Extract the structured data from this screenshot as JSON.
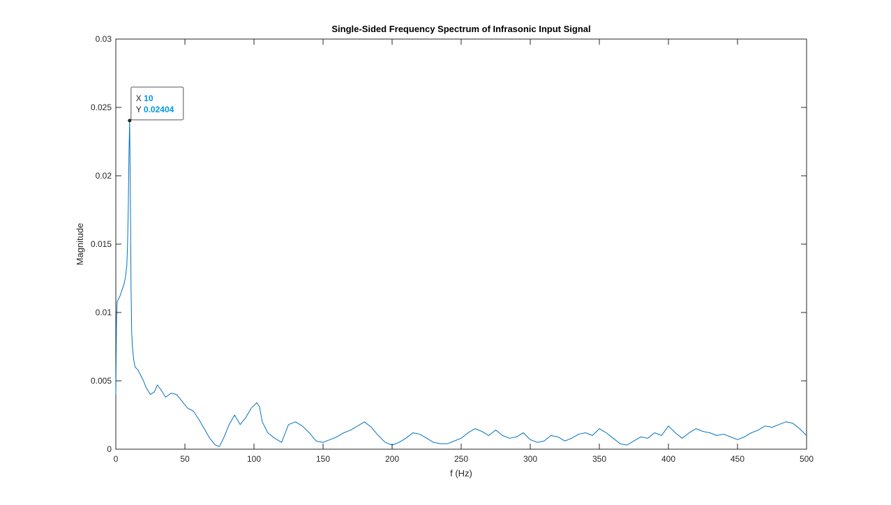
{
  "colors": {
    "series": "#0072BD",
    "axis": "#262626",
    "datatip_value": "#0096E6"
  },
  "chart_data": {
    "type": "line",
    "title": "Single-Sided Frequency Spectrum of Infrasonic Input Signal",
    "xlabel": "f (Hz)",
    "ylabel": "Magnitude",
    "xlim": [
      0,
      500
    ],
    "ylim": [
      0,
      0.03
    ],
    "xticks": [
      0,
      50,
      100,
      150,
      200,
      250,
      300,
      350,
      400,
      450,
      500
    ],
    "xtick_labels": [
      "0",
      "50",
      "100",
      "150",
      "200",
      "250",
      "300",
      "350",
      "400",
      "450",
      "500"
    ],
    "yticks": [
      0,
      0.005,
      0.01,
      0.015,
      0.02,
      0.025,
      0.03
    ],
    "ytick_labels": [
      "0",
      "0.005",
      "0.01",
      "0.015",
      "0.02",
      "0.025",
      "0.03"
    ],
    "grid": false,
    "box": true,
    "series": [
      {
        "x": [
          0,
          0.5,
          1,
          2,
          3,
          4,
          5,
          6,
          7,
          8,
          8.5,
          9,
          9.5,
          10,
          10.5,
          11,
          11.5,
          12,
          13,
          14,
          16,
          18,
          20,
          22,
          25,
          28,
          30,
          33,
          36,
          40,
          44,
          48,
          52,
          56,
          60,
          64,
          68,
          72,
          75,
          78,
          82,
          86,
          90,
          94,
          98,
          102,
          104,
          106,
          110,
          115,
          120,
          125,
          130,
          135,
          140,
          145,
          150,
          155,
          160,
          165,
          170,
          175,
          180,
          185,
          190,
          195,
          200,
          205,
          210,
          215,
          220,
          225,
          230,
          235,
          240,
          245,
          250,
          255,
          260,
          265,
          270,
          275,
          280,
          285,
          290,
          295,
          300,
          305,
          310,
          315,
          320,
          325,
          330,
          335,
          340,
          345,
          350,
          355,
          360,
          365,
          370,
          375,
          380,
          385,
          390,
          395,
          400,
          405,
          410,
          415,
          420,
          425,
          430,
          435,
          440,
          445,
          450,
          455,
          460,
          465,
          470,
          475,
          480,
          485,
          490,
          495,
          500
        ],
        "y": [
          0.004,
          0.0095,
          0.0108,
          0.011,
          0.0112,
          0.0115,
          0.0118,
          0.0121,
          0.0126,
          0.0135,
          0.015,
          0.0175,
          0.0215,
          0.02404,
          0.019,
          0.012,
          0.0085,
          0.0075,
          0.0065,
          0.006,
          0.0058,
          0.0054,
          0.005,
          0.0045,
          0.004,
          0.0042,
          0.0047,
          0.0043,
          0.0038,
          0.0041,
          0.004,
          0.0035,
          0.003,
          0.0028,
          0.0022,
          0.0015,
          0.0008,
          0.0003,
          0.0002,
          0.0008,
          0.0018,
          0.0025,
          0.0018,
          0.0023,
          0.003,
          0.0034,
          0.0031,
          0.002,
          0.0012,
          0.0008,
          0.0005,
          0.0018,
          0.002,
          0.0017,
          0.0012,
          0.0006,
          0.0005,
          0.0007,
          0.0009,
          0.0012,
          0.0014,
          0.0017,
          0.002,
          0.0016,
          0.001,
          0.0005,
          0.0003,
          0.0005,
          0.0008,
          0.0012,
          0.0011,
          0.0008,
          0.0005,
          0.0004,
          0.0004,
          0.0006,
          0.0008,
          0.0012,
          0.0015,
          0.0013,
          0.001,
          0.0014,
          0.001,
          0.0008,
          0.0009,
          0.0012,
          0.0007,
          0.0005,
          0.0006,
          0.001,
          0.0009,
          0.0006,
          0.0008,
          0.0011,
          0.0012,
          0.001,
          0.0015,
          0.0012,
          0.0008,
          0.0004,
          0.0003,
          0.0006,
          0.0009,
          0.0008,
          0.0012,
          0.001,
          0.0017,
          0.0012,
          0.0008,
          0.0012,
          0.0015,
          0.0013,
          0.0012,
          0.001,
          0.0011,
          0.0009,
          0.0007,
          0.0009,
          0.0012,
          0.0014,
          0.0017,
          0.0016,
          0.0018,
          0.002,
          0.0019,
          0.0015,
          0.001
        ]
      }
    ],
    "datatip": {
      "x_label": "X",
      "x_value": "10",
      "y_label": "Y",
      "y_value": "0.02404",
      "x": 10,
      "y": 0.02404
    }
  }
}
